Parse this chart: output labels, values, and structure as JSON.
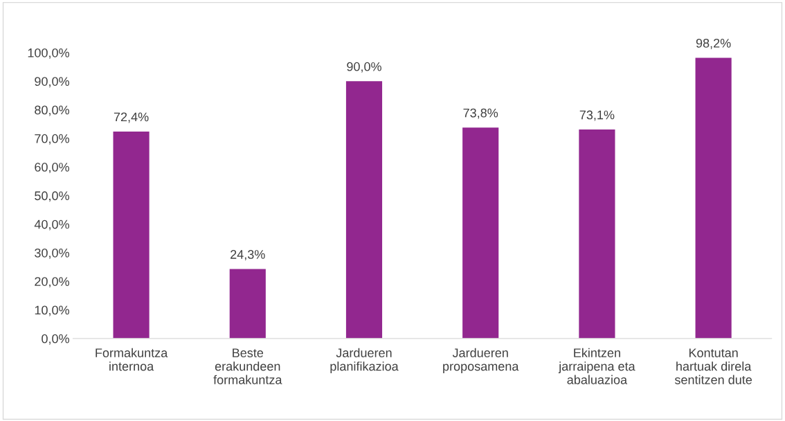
{
  "chart_data": {
    "type": "bar",
    "categories": [
      "Formakuntza\ninternoa",
      "Beste\nerakundeen\nformakuntza",
      "Jardueren\nplanifikazioa",
      "Jardueren\nproposamena",
      "Ekintzen\njarraipena eta\nabaluazioa",
      "Kontutan\nhartuak direla\nsentitzen dute"
    ],
    "values": [
      72.4,
      24.3,
      90.0,
      73.8,
      73.1,
      98.2
    ],
    "value_labels": [
      "72,4%",
      "24,3%",
      "90,0%",
      "73,8%",
      "73,1%",
      "98,2%"
    ],
    "color": "#92278f",
    "ylim": [
      0,
      100
    ],
    "yticks": [
      {
        "value": 0,
        "label": "0,0%"
      },
      {
        "value": 10,
        "label": "10,0%"
      },
      {
        "value": 20,
        "label": "20,0%"
      },
      {
        "value": 30,
        "label": "30,0%"
      },
      {
        "value": 40,
        "label": "40,0%"
      },
      {
        "value": 50,
        "label": "50,0%"
      },
      {
        "value": 60,
        "label": "60,0%"
      },
      {
        "value": 70,
        "label": "70,0%"
      },
      {
        "value": 80,
        "label": "80,0%"
      },
      {
        "value": 90,
        "label": "90,0%"
      },
      {
        "value": 100,
        "label": "100,0%"
      }
    ],
    "grid": false,
    "legend": false
  }
}
